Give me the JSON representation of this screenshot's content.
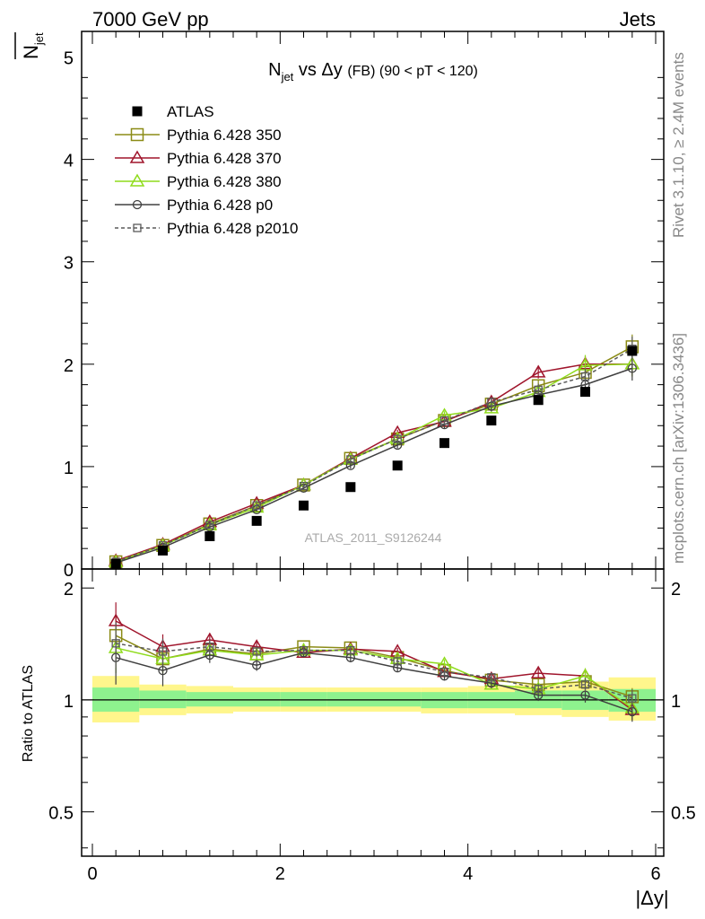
{
  "header": {
    "left": "7000 GeV pp",
    "right": "Jets"
  },
  "side_labels": {
    "rivet": "Rivet 3.1.10, ≥ 2.4M events",
    "mcplots": "mcplots.cern.ch [arXiv:1306.3436]"
  },
  "watermark": "ATLAS_2011_S9126244",
  "colors": {
    "ATLAS": "#000000",
    "p350": "#8b8b16",
    "p370": "#a0152c",
    "p380": "#8fdc1c",
    "p0": "#404040",
    "p2010": "#5a5a5a",
    "band_inner": "#8ef28e",
    "band_outer": "#fff68c"
  },
  "chart_data": [
    {
      "type": "scatter",
      "panel": "main",
      "title_parts": {
        "n": "N",
        "sub": "jet",
        "mid": " vs Δy ",
        "fb": "(FB) ",
        "rest": "(90 < pT < 120)"
      },
      "ylabel": "N̅jet",
      "ylabel_parts": {
        "n": "N",
        "sub": "jet"
      },
      "xlim": [
        0,
        6
      ],
      "ylim": [
        0,
        5.25
      ],
      "yticks": [
        "0",
        "1",
        "2",
        "3",
        "4",
        "5"
      ],
      "legend_position": "top-left",
      "x": [
        0.25,
        0.75,
        1.25,
        1.75,
        2.25,
        2.75,
        3.25,
        3.75,
        4.25,
        4.75,
        5.25,
        5.75
      ],
      "series": [
        {
          "name": "ATLAS",
          "marker": "filled-square",
          "values": [
            0.05,
            0.18,
            0.32,
            0.47,
            0.62,
            0.8,
            1.01,
            1.23,
            1.45,
            1.65,
            1.73,
            2.13
          ]
        },
        {
          "name": "Pythia 6.428 350",
          "marker": "open-square",
          "values": [
            0.07,
            0.23,
            0.44,
            0.62,
            0.82,
            1.08,
            1.27,
            1.45,
            1.61,
            1.79,
            1.92,
            2.17
          ],
          "errors": [
            0.01,
            0.02,
            0.02,
            0.02,
            0.02,
            0.03,
            0.03,
            0.04,
            0.05,
            0.06,
            0.08,
            0.12
          ]
        },
        {
          "name": "Pythia 6.428 370",
          "marker": "open-triangle",
          "values": [
            0.08,
            0.24,
            0.46,
            0.64,
            0.82,
            1.08,
            1.33,
            1.44,
            1.63,
            1.92,
            2.0,
            2.0
          ],
          "errors": [
            0.01,
            0.02,
            0.02,
            0.02,
            0.02,
            0.03,
            0.03,
            0.04,
            0.05,
            0.06,
            0.08,
            0.12
          ]
        },
        {
          "name": "Pythia 6.428 380",
          "marker": "open-triangle",
          "values": [
            0.07,
            0.23,
            0.43,
            0.6,
            0.82,
            1.07,
            1.27,
            1.5,
            1.57,
            1.73,
            1.99,
            2.0
          ],
          "errors": [
            0.01,
            0.02,
            0.02,
            0.02,
            0.02,
            0.03,
            0.03,
            0.04,
            0.05,
            0.06,
            0.1,
            0.12
          ]
        },
        {
          "name": "Pythia 6.428 p0",
          "marker": "open-circle",
          "values": [
            0.06,
            0.21,
            0.41,
            0.58,
            0.79,
            1.01,
            1.21,
            1.41,
            1.59,
            1.7,
            1.8,
            1.96
          ],
          "errors": [
            0.01,
            0.02,
            0.02,
            0.02,
            0.02,
            0.03,
            0.03,
            0.04,
            0.05,
            0.06,
            0.08,
            0.12
          ]
        },
        {
          "name": "Pythia 6.428 p2010",
          "marker": "open-square-small",
          "dashed": true,
          "values": [
            0.07,
            0.23,
            0.43,
            0.62,
            0.81,
            1.07,
            1.27,
            1.45,
            1.63,
            1.75,
            1.88,
            2.15
          ],
          "errors": [
            0.01,
            0.02,
            0.02,
            0.02,
            0.02,
            0.03,
            0.03,
            0.04,
            0.05,
            0.06,
            0.08,
            0.12
          ]
        }
      ]
    },
    {
      "type": "line",
      "panel": "ratio",
      "ylabel": "Ratio to ATLAS",
      "xlabel": "|Δy|",
      "xlim": [
        0,
        6
      ],
      "ylim": [
        0.38,
        2.25
      ],
      "xticks": [
        "0",
        "2",
        "4",
        "6"
      ],
      "yticks": [
        "0.5",
        "1",
        "2"
      ],
      "bin_edges": [
        0,
        0.5,
        1.0,
        1.5,
        2.0,
        2.5,
        3.0,
        3.5,
        4.0,
        4.5,
        5.0,
        5.5,
        6.0
      ],
      "atlas_band_inner": [
        [
          0.93,
          1.08
        ],
        [
          0.95,
          1.06
        ],
        [
          0.96,
          1.05
        ],
        [
          0.96,
          1.05
        ],
        [
          0.96,
          1.05
        ],
        [
          0.96,
          1.05
        ],
        [
          0.96,
          1.05
        ],
        [
          0.95,
          1.05
        ],
        [
          0.95,
          1.05
        ],
        [
          0.95,
          1.06
        ],
        [
          0.94,
          1.06
        ],
        [
          0.93,
          1.07
        ]
      ],
      "atlas_band_outer": [
        [
          0.87,
          1.16
        ],
        [
          0.91,
          1.1
        ],
        [
          0.92,
          1.09
        ],
        [
          0.93,
          1.08
        ],
        [
          0.93,
          1.08
        ],
        [
          0.93,
          1.08
        ],
        [
          0.93,
          1.08
        ],
        [
          0.92,
          1.08
        ],
        [
          0.92,
          1.09
        ],
        [
          0.91,
          1.1
        ],
        [
          0.9,
          1.12
        ],
        [
          0.88,
          1.15
        ]
      ],
      "series": [
        {
          "name": "Pythia 6.428 350",
          "values": [
            1.49,
            1.29,
            1.37,
            1.33,
            1.39,
            1.38,
            1.3,
            1.2,
            1.13,
            1.1,
            1.12,
            1.02
          ]
        },
        {
          "name": "Pythia 6.428 370",
          "values": [
            1.63,
            1.39,
            1.45,
            1.39,
            1.34,
            1.37,
            1.35,
            1.19,
            1.14,
            1.18,
            1.16,
            0.94
          ]
        },
        {
          "name": "Pythia 6.428 380",
          "values": [
            1.38,
            1.29,
            1.36,
            1.32,
            1.36,
            1.36,
            1.29,
            1.25,
            1.1,
            1.07,
            1.16,
            0.95
          ]
        },
        {
          "name": "Pythia 6.428 p0",
          "values": [
            1.3,
            1.2,
            1.32,
            1.24,
            1.34,
            1.3,
            1.22,
            1.16,
            1.11,
            1.03,
            1.03,
            0.93
          ]
        },
        {
          "name": "Pythia 6.428 p2010",
          "values": [
            1.42,
            1.35,
            1.39,
            1.35,
            1.36,
            1.36,
            1.27,
            1.19,
            1.15,
            1.07,
            1.1,
            1.01
          ]
        }
      ]
    }
  ]
}
